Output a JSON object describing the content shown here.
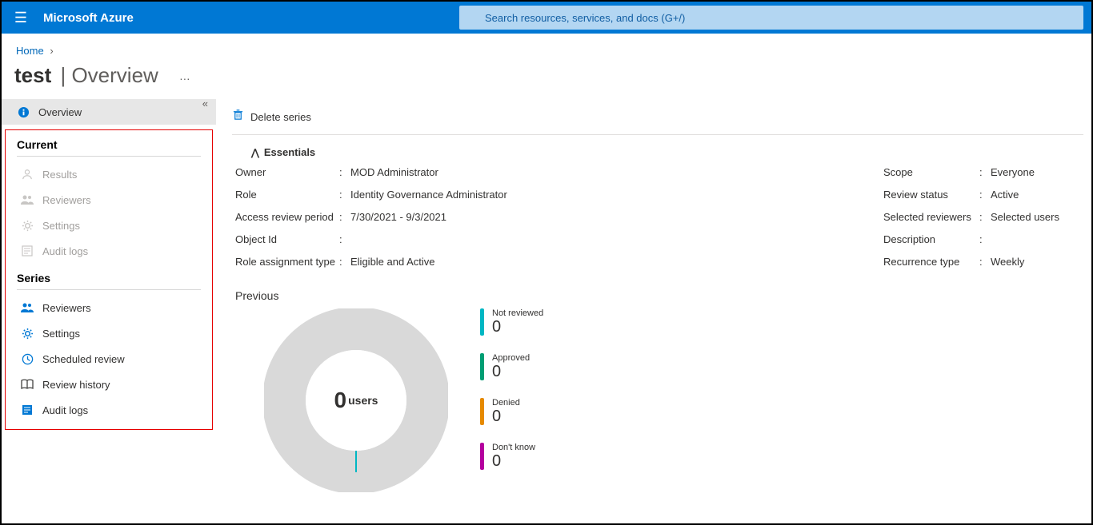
{
  "topbar": {
    "brand": "Microsoft Azure",
    "search_placeholder": "Search resources, services, and docs (G+/)"
  },
  "breadcrumb": {
    "home": "Home"
  },
  "page_title": {
    "resource": "test",
    "section": "Overview"
  },
  "cmdbar": {
    "delete_series": "Delete series"
  },
  "sidebar": {
    "overview": "Overview",
    "current_title": "Current",
    "current": {
      "results": "Results",
      "reviewers": "Reviewers",
      "settings": "Settings",
      "audit_logs": "Audit logs"
    },
    "series_title": "Series",
    "series": {
      "reviewers": "Reviewers",
      "settings": "Settings",
      "scheduled_review": "Scheduled review",
      "review_history": "Review history",
      "audit_logs": "Audit logs"
    }
  },
  "essentials": {
    "header": "Essentials",
    "left": {
      "owner_label": "Owner",
      "owner_value": "MOD Administrator",
      "role_label": "Role",
      "role_value": "Identity Governance Administrator",
      "period_label": "Access review period",
      "period_value": "7/30/2021 - 9/3/2021",
      "objectid_label": "Object Id",
      "objectid_value": "",
      "rat_label": "Role assignment type",
      "rat_value": "Eligible and Active"
    },
    "right": {
      "scope_label": "Scope",
      "scope_value": "Everyone",
      "status_label": "Review status",
      "status_value": "Active",
      "selrev_label": "Selected reviewers",
      "selrev_value": "Selected users",
      "desc_label": "Description",
      "desc_value": "",
      "recur_label": "Recurrence type",
      "recur_value": "Weekly"
    }
  },
  "previous": {
    "title": "Previous",
    "donut": {
      "value": "0",
      "suffix": "users",
      "ring_color": "#d9d9d9",
      "ring_inner": "#ffffff",
      "tick_color": "#00b7c3"
    },
    "legend": [
      {
        "label": "Not reviewed",
        "value": "0",
        "color": "#00b7c3"
      },
      {
        "label": "Approved",
        "value": "0",
        "color": "#009e73"
      },
      {
        "label": "Denied",
        "value": "0",
        "color": "#e68a00"
      },
      {
        "label": "Don't know",
        "value": "0",
        "color": "#b4009e"
      }
    ]
  }
}
